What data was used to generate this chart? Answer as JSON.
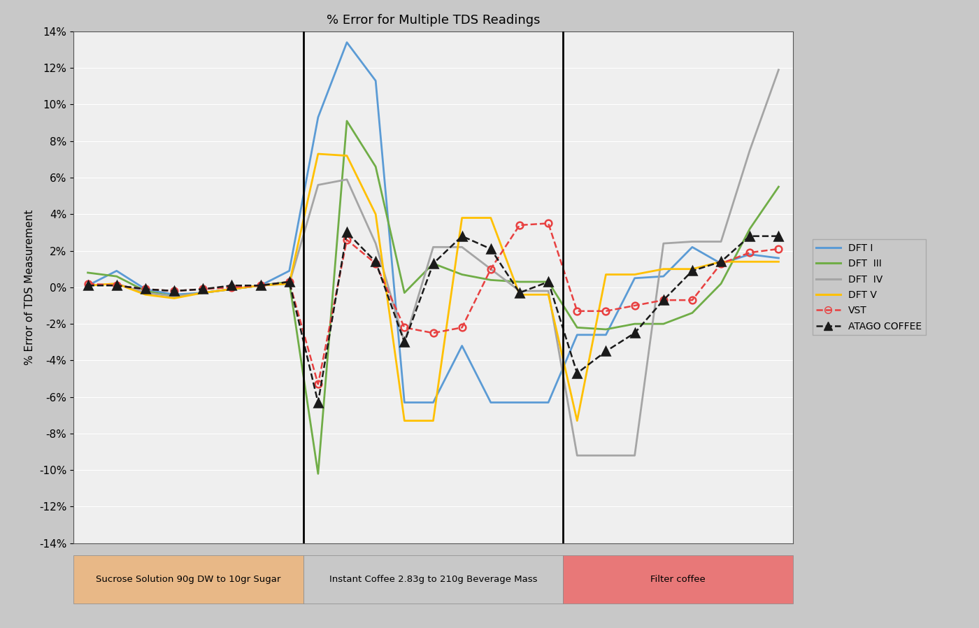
{
  "title": "% Error for Multiple TDS Readings",
  "ylabel": "% Error of TDS Measurement",
  "ylim": [
    -0.14,
    0.14
  ],
  "yticks": [
    -0.14,
    -0.12,
    -0.1,
    -0.08,
    -0.06,
    -0.04,
    -0.02,
    0.0,
    0.02,
    0.04,
    0.06,
    0.08,
    0.1,
    0.12,
    0.14
  ],
  "ytick_labels": [
    "-14%",
    "-12%",
    "-10%",
    "-8%",
    "-6%",
    "-4%",
    "-2%",
    "0%",
    "2%",
    "4%",
    "6%",
    "8%",
    "10%",
    "12%",
    "14%"
  ],
  "background_color": "#c8c8c8",
  "plot_bg_color": "#efefef",
  "grid_color": "#ffffff",
  "section_labels": [
    "Sucrose Solution 90g DW to 10gr Sugar",
    "Instant Coffee 2.83g to 210g Beverage Mass",
    "Filter coffee"
  ],
  "section_colors": [
    "#e8b887",
    "#c8c8c8",
    "#e87878"
  ],
  "series": {
    "DFT_I": {
      "color": "#5b9bd5",
      "linestyle": "-",
      "marker": null,
      "linewidth": 2.0,
      "x": [
        0,
        1,
        2,
        3,
        4,
        5,
        6,
        7,
        8,
        9,
        10,
        11,
        12,
        13,
        14,
        15,
        16,
        17,
        18,
        19,
        20,
        21,
        22,
        23,
        24
      ],
      "y": [
        0.001,
        0.009,
        -0.001,
        -0.004,
        -0.003,
        -0.001,
        0.001,
        0.009,
        0.093,
        0.134,
        0.113,
        -0.063,
        -0.063,
        -0.032,
        -0.063,
        -0.063,
        -0.063,
        -0.026,
        -0.026,
        0.005,
        0.006,
        0.022,
        0.013,
        0.018,
        0.016
      ]
    },
    "DFT_III": {
      "color": "#70ad47",
      "linestyle": "-",
      "marker": null,
      "linewidth": 2.0,
      "x": [
        0,
        1,
        2,
        3,
        4,
        5,
        6,
        7,
        8,
        9,
        10,
        11,
        12,
        13,
        14,
        15,
        16,
        17,
        18,
        19,
        20,
        21,
        22,
        23,
        24
      ],
      "y": [
        0.008,
        0.006,
        -0.002,
        -0.005,
        -0.003,
        -0.001,
        0.001,
        0.003,
        -0.102,
        0.091,
        0.066,
        -0.003,
        0.013,
        0.007,
        0.004,
        0.003,
        0.003,
        -0.022,
        -0.023,
        -0.02,
        -0.02,
        -0.014,
        0.002,
        0.032,
        0.055
      ]
    },
    "DFT_IV": {
      "color": "#a5a5a5",
      "linestyle": "-",
      "marker": null,
      "linewidth": 2.0,
      "x": [
        0,
        1,
        2,
        3,
        4,
        5,
        6,
        7,
        8,
        9,
        10,
        11,
        12,
        13,
        14,
        15,
        16,
        17,
        18,
        19,
        20,
        21,
        22,
        23,
        24
      ],
      "y": [
        0.001,
        0.002,
        -0.003,
        -0.005,
        -0.003,
        -0.001,
        0.001,
        0.002,
        0.056,
        0.059,
        0.024,
        -0.03,
        0.022,
        0.022,
        0.01,
        -0.002,
        -0.002,
        -0.092,
        -0.092,
        -0.092,
        0.024,
        0.025,
        0.025,
        0.075,
        0.119
      ]
    },
    "DFT_V": {
      "color": "#ffc000",
      "linestyle": "-",
      "marker": null,
      "linewidth": 2.0,
      "x": [
        0,
        1,
        2,
        3,
        4,
        5,
        6,
        7,
        8,
        9,
        10,
        11,
        12,
        13,
        14,
        15,
        16,
        17,
        18,
        19,
        20,
        21,
        22,
        23,
        24
      ],
      "y": [
        0.001,
        0.002,
        -0.004,
        -0.006,
        -0.003,
        -0.001,
        0.001,
        0.002,
        0.073,
        0.072,
        0.04,
        -0.073,
        -0.073,
        0.038,
        0.038,
        -0.004,
        -0.004,
        -0.073,
        0.007,
        0.007,
        0.01,
        0.01,
        0.014,
        0.014,
        0.014
      ]
    },
    "VST": {
      "color": "#e84040",
      "linestyle": "--",
      "marker": "o",
      "linewidth": 1.8,
      "markersize": 7,
      "x": [
        0,
        1,
        2,
        3,
        4,
        5,
        6,
        7,
        8,
        9,
        10,
        11,
        12,
        13,
        14,
        15,
        16,
        17,
        18,
        19,
        20,
        21,
        22,
        23,
        24
      ],
      "y": [
        0.002,
        0.001,
        -0.001,
        -0.002,
        -0.001,
        0.0,
        0.001,
        0.003,
        -0.053,
        0.026,
        0.013,
        -0.022,
        -0.025,
        -0.022,
        0.01,
        0.034,
        0.035,
        -0.013,
        -0.013,
        -0.01,
        -0.007,
        -0.007,
        0.013,
        0.019,
        0.021
      ]
    },
    "ATAGO": {
      "color": "#1a1a1a",
      "linestyle": "--",
      "marker": "^",
      "linewidth": 1.8,
      "markersize": 8,
      "x": [
        0,
        1,
        2,
        3,
        4,
        5,
        6,
        7,
        8,
        9,
        10,
        11,
        12,
        13,
        14,
        15,
        16,
        17,
        18,
        19,
        20,
        21,
        22,
        23,
        24
      ],
      "y": [
        0.001,
        0.001,
        -0.001,
        -0.002,
        -0.001,
        0.001,
        0.001,
        0.003,
        -0.063,
        0.03,
        0.014,
        -0.03,
        0.013,
        0.028,
        0.021,
        -0.003,
        0.003,
        -0.047,
        -0.035,
        -0.025,
        -0.007,
        0.009,
        0.014,
        0.028,
        0.028
      ]
    }
  },
  "legend": {
    "labels": [
      "DFT I",
      "DFT  III",
      "DFT  IV",
      "DFT V",
      "VST",
      "ATAGO COFFEE"
    ],
    "colors": [
      "#5b9bd5",
      "#70ad47",
      "#a5a5a5",
      "#ffc000",
      "#e84040",
      "#1a1a1a"
    ],
    "linestyles": [
      "-",
      "-",
      "-",
      "-",
      "--",
      "--"
    ],
    "markers": [
      null,
      null,
      null,
      null,
      "o",
      "^"
    ]
  }
}
